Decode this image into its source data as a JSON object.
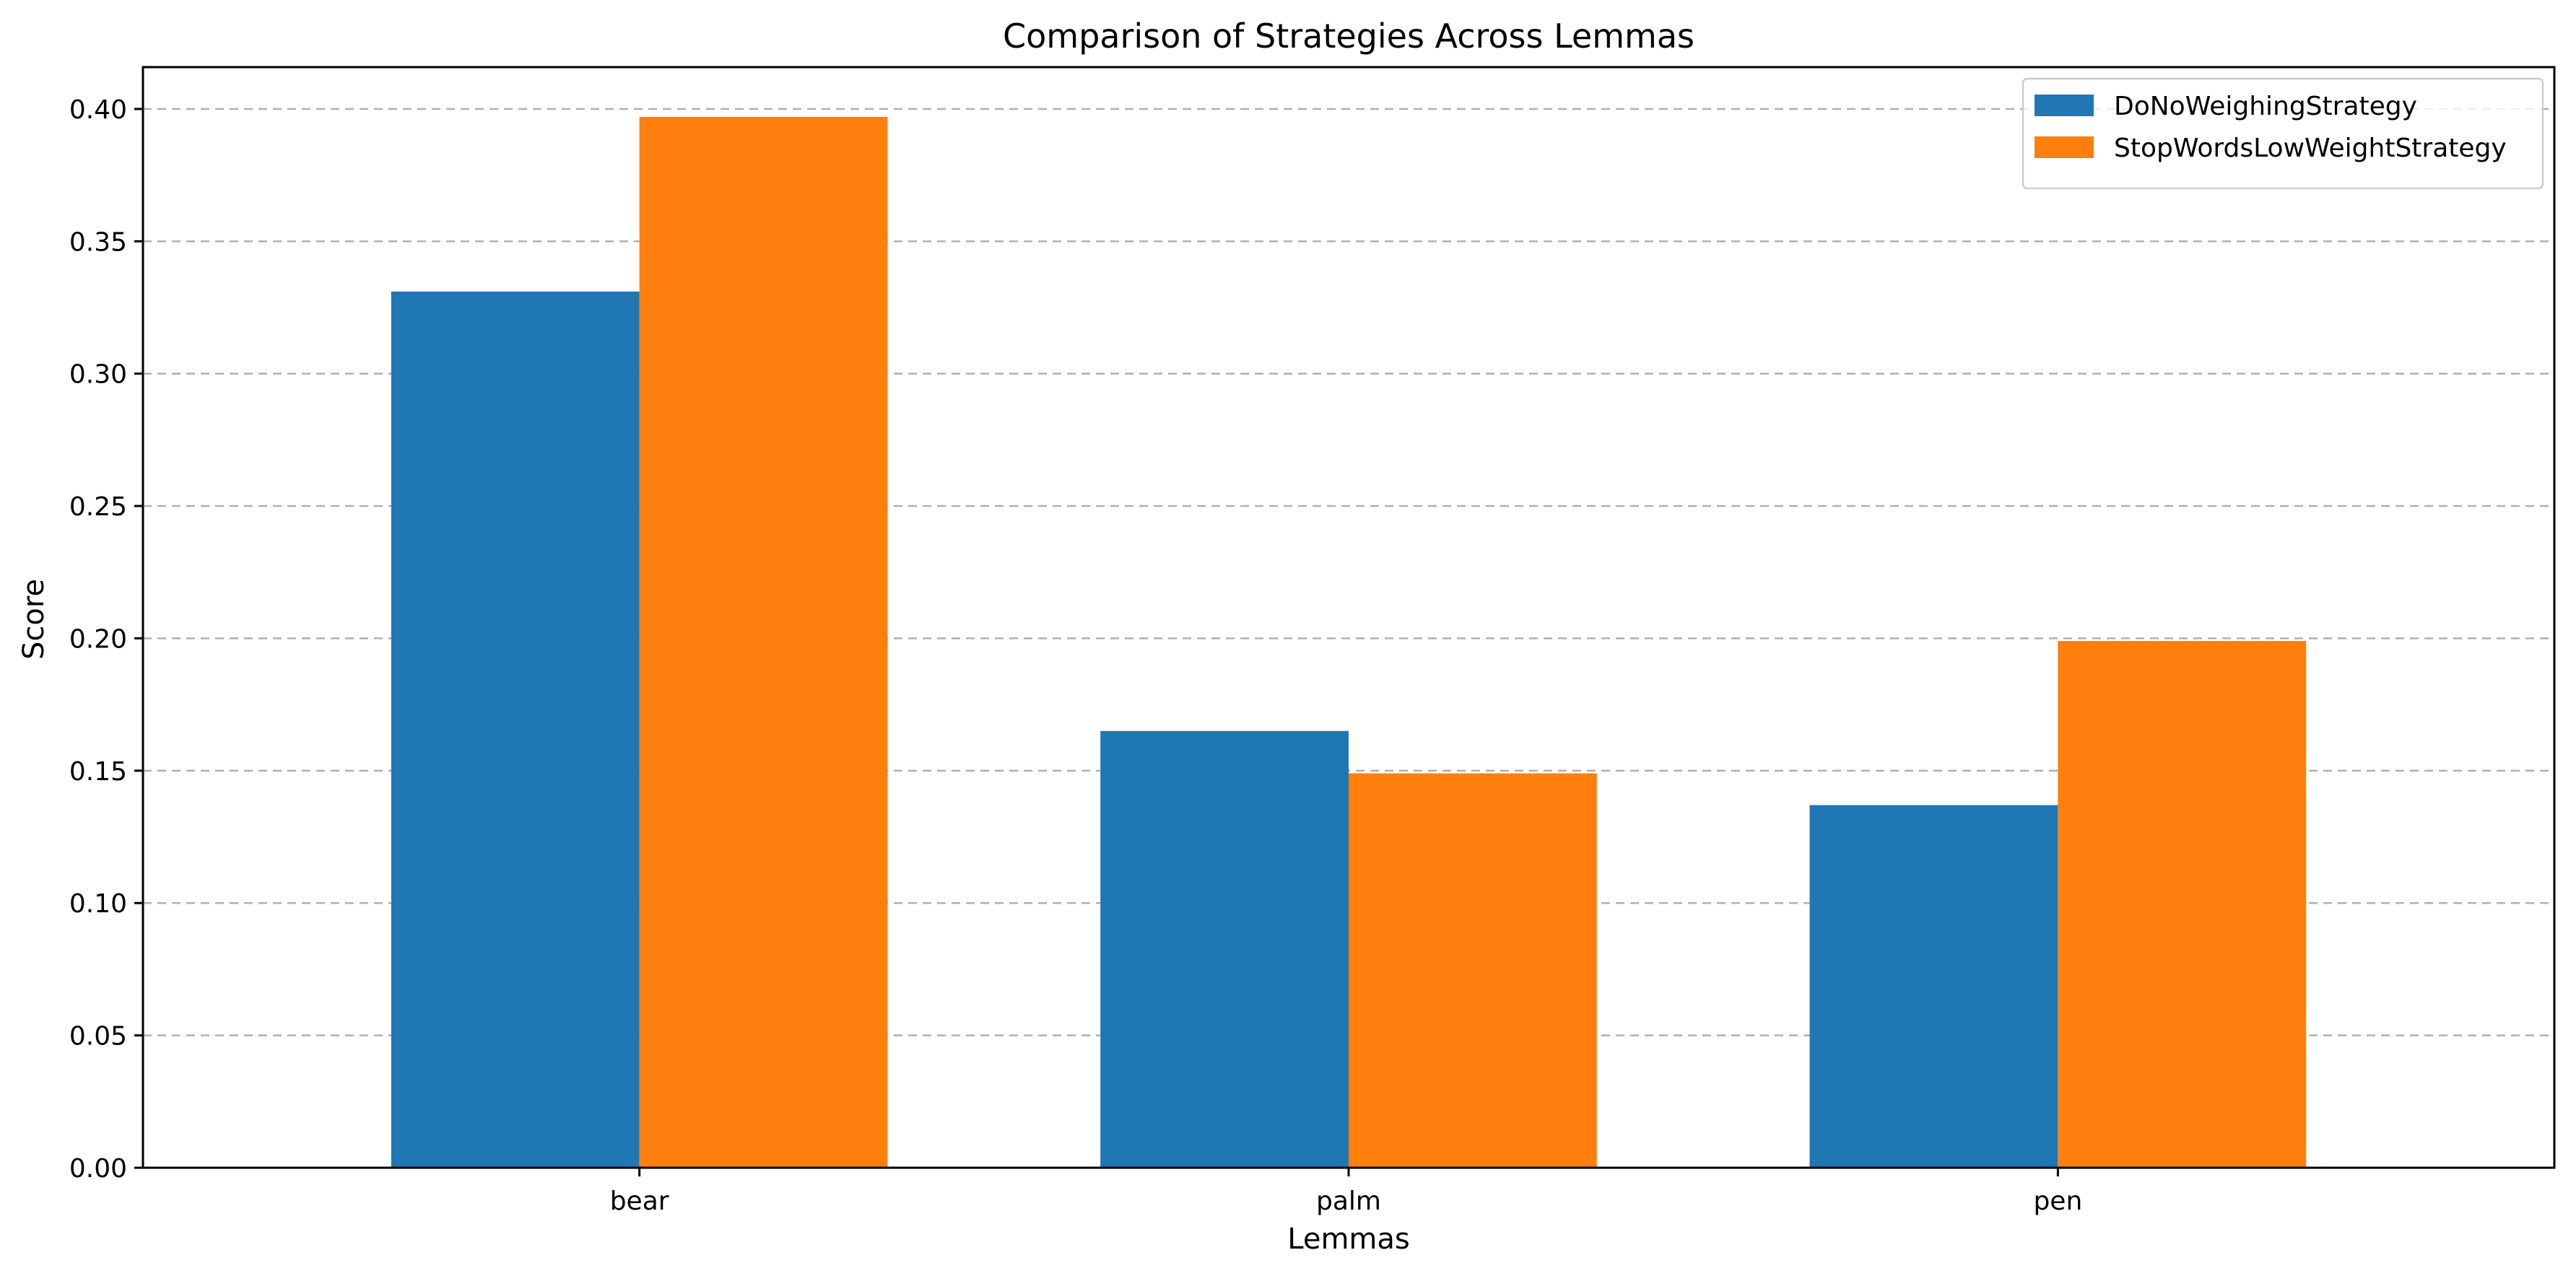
{
  "chart_data": {
    "type": "bar",
    "title": "Comparison of Strategies Across Lemmas",
    "xlabel": "Lemmas",
    "ylabel": "Score",
    "categories": [
      "bear",
      "palm",
      "pen"
    ],
    "series": [
      {
        "name": "DoNoWeighingStrategy",
        "color": "#1f77b4",
        "values": [
          0.331,
          0.165,
          0.137
        ]
      },
      {
        "name": "StopWordsLowWeightStrategy",
        "color": "#ff7f0e",
        "values": [
          0.397,
          0.149,
          0.199
        ]
      }
    ],
    "ylim": [
      0.0,
      0.4158
    ],
    "yticks": [
      0.0,
      0.05,
      0.1,
      0.15,
      0.2,
      0.25,
      0.3,
      0.35,
      0.4
    ],
    "ytick_labels": [
      "0.00",
      "0.05",
      "0.10",
      "0.15",
      "0.20",
      "0.25",
      "0.30",
      "0.35",
      "0.40"
    ],
    "grid": "y, dashed",
    "legend_position": "top-right"
  }
}
